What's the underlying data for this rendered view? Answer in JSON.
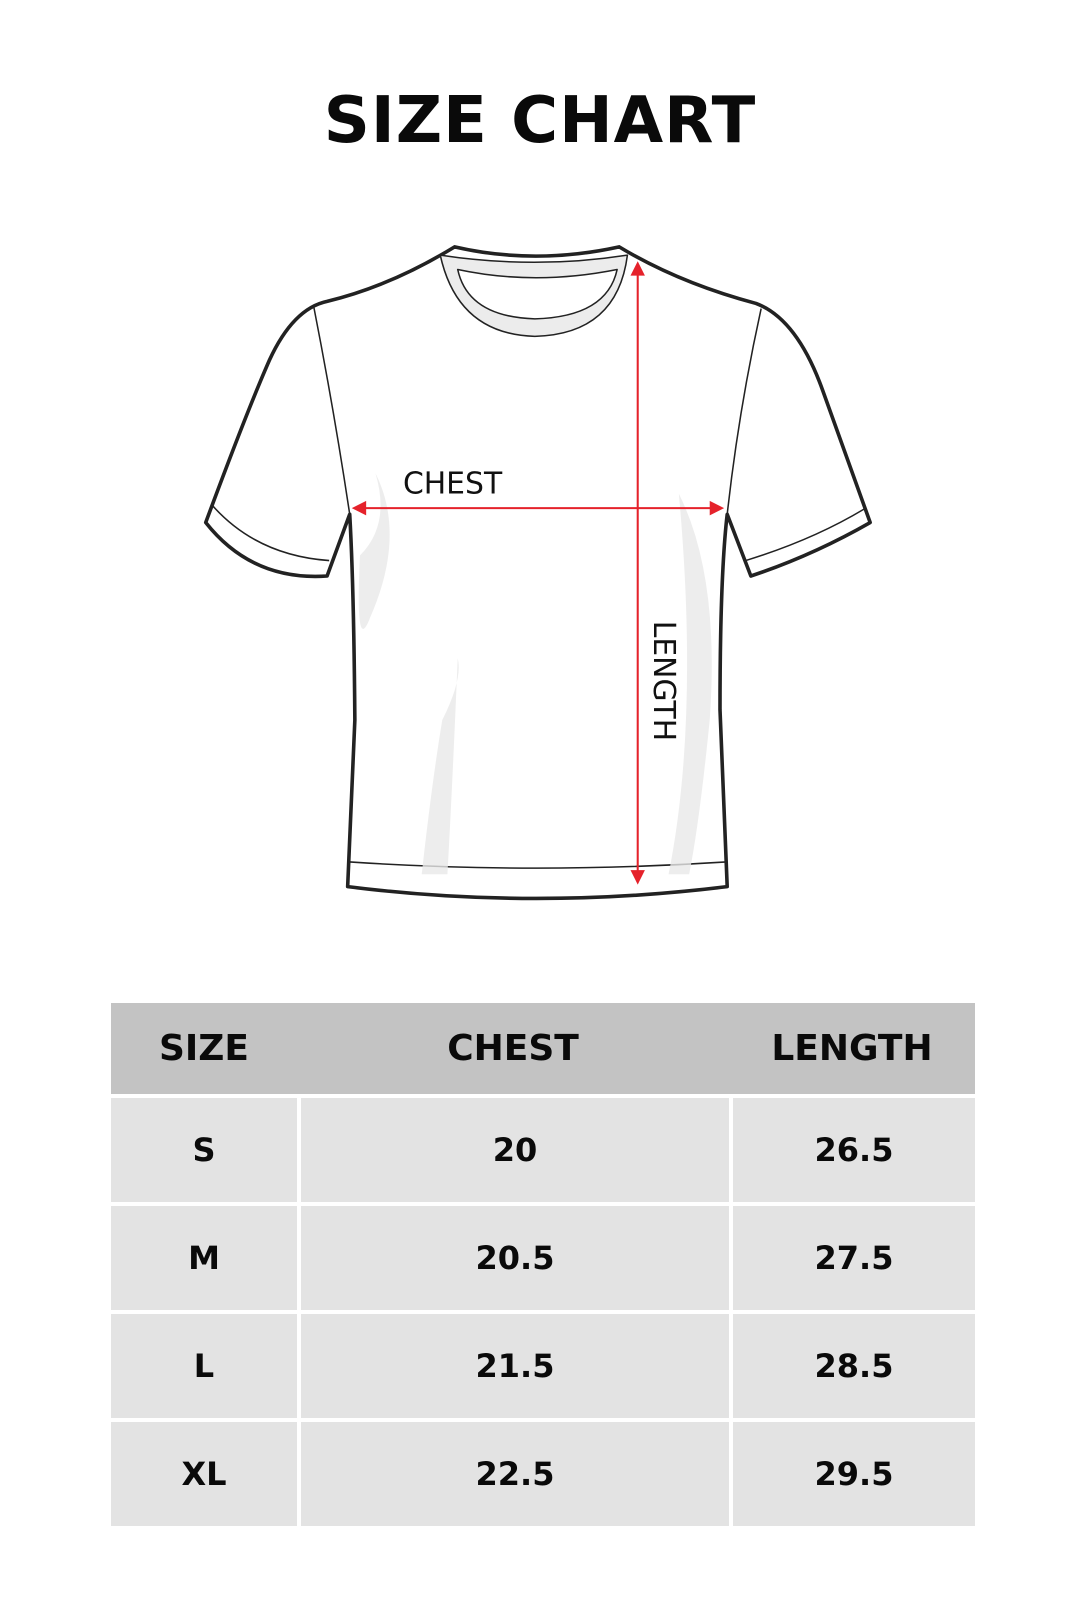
{
  "title": "SIZE CHART",
  "diagram": {
    "chest_label": "CHEST",
    "length_label": "LENGTH",
    "arrow_color": "#e5222b"
  },
  "table": {
    "headers": [
      "SIZE",
      "CHEST",
      "LENGTH"
    ],
    "rows": [
      [
        "S",
        "20",
        "26.5"
      ],
      [
        "M",
        "20.5",
        "27.5"
      ],
      [
        "L",
        "21.5",
        "28.5"
      ],
      [
        "XL",
        "22.5",
        "29.5"
      ]
    ]
  }
}
